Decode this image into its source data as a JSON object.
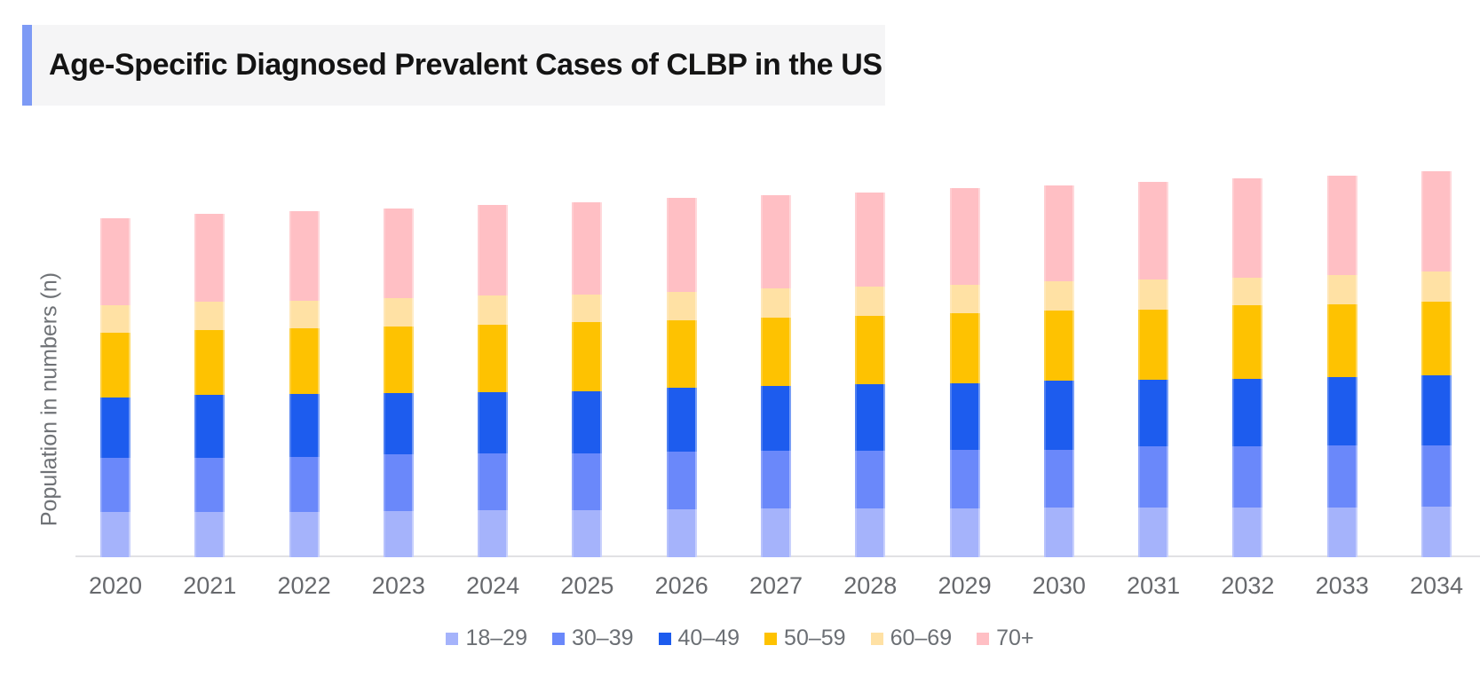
{
  "title": "Age-Specific Diagnosed Prevalent Cases of CLBP in the US",
  "y_axis_label": "Population in numbers (n)",
  "colors": {
    "title_accent": "#7d9af5",
    "title_background": "#f5f5f6",
    "axis_line": "#e1e1e4",
    "x_label_text": "#67696d",
    "legend_text": "#6b6f74",
    "y_label_text": "#6f7276"
  },
  "chart_data": {
    "type": "bar",
    "stacked": true,
    "title": "Age-Specific Diagnosed Prevalent Cases of CLBP in the US",
    "xlabel": "",
    "ylabel": "Population in numbers (n)",
    "units": "relative (y-axis has no numeric tick labels; values are proportional heights)",
    "grid": false,
    "legend_position": "bottom",
    "categories": [
      "2020",
      "2021",
      "2022",
      "2023",
      "2024",
      "2025",
      "2026",
      "2027",
      "2028",
      "2029",
      "2030",
      "2031",
      "2032",
      "2033",
      "2034"
    ],
    "series": [
      {
        "name": "18–29",
        "color": "#a5b3fb",
        "values": [
          51,
          51,
          51,
          52,
          53,
          53,
          54,
          55,
          55,
          55,
          56,
          56,
          56,
          56,
          57
        ]
      },
      {
        "name": "30–39",
        "color": "#6a88fa",
        "values": [
          61,
          61,
          62,
          64,
          64,
          64,
          65,
          65,
          65,
          66,
          65,
          69,
          69,
          70,
          69
        ]
      },
      {
        "name": "40–49",
        "color": "#1d5cee",
        "values": [
          68,
          71,
          71,
          69,
          69,
          70,
          72,
          73,
          75,
          75,
          78,
          75,
          76,
          77,
          79
        ]
      },
      {
        "name": "50–59",
        "color": "#fec201",
        "values": [
          73,
          73,
          74,
          75,
          76,
          78,
          76,
          77,
          77,
          79,
          79,
          79,
          83,
          82,
          83
        ]
      },
      {
        "name": "60–69",
        "color": "#ffe1a4",
        "values": [
          31,
          32,
          31,
          32,
          33,
          31,
          32,
          33,
          33,
          32,
          33,
          34,
          31,
          33,
          34
        ]
      },
      {
        "name": "70+",
        "color": "#ffbfc4",
        "values": [
          98,
          99,
          101,
          101,
          102,
          104,
          106,
          105,
          106,
          109,
          108,
          110,
          112,
          112,
          113
        ]
      }
    ],
    "totals": [
      382,
      387,
      390,
      393,
      397,
      400,
      405,
      408,
      411,
      416,
      419,
      423,
      427,
      430,
      435
    ]
  }
}
